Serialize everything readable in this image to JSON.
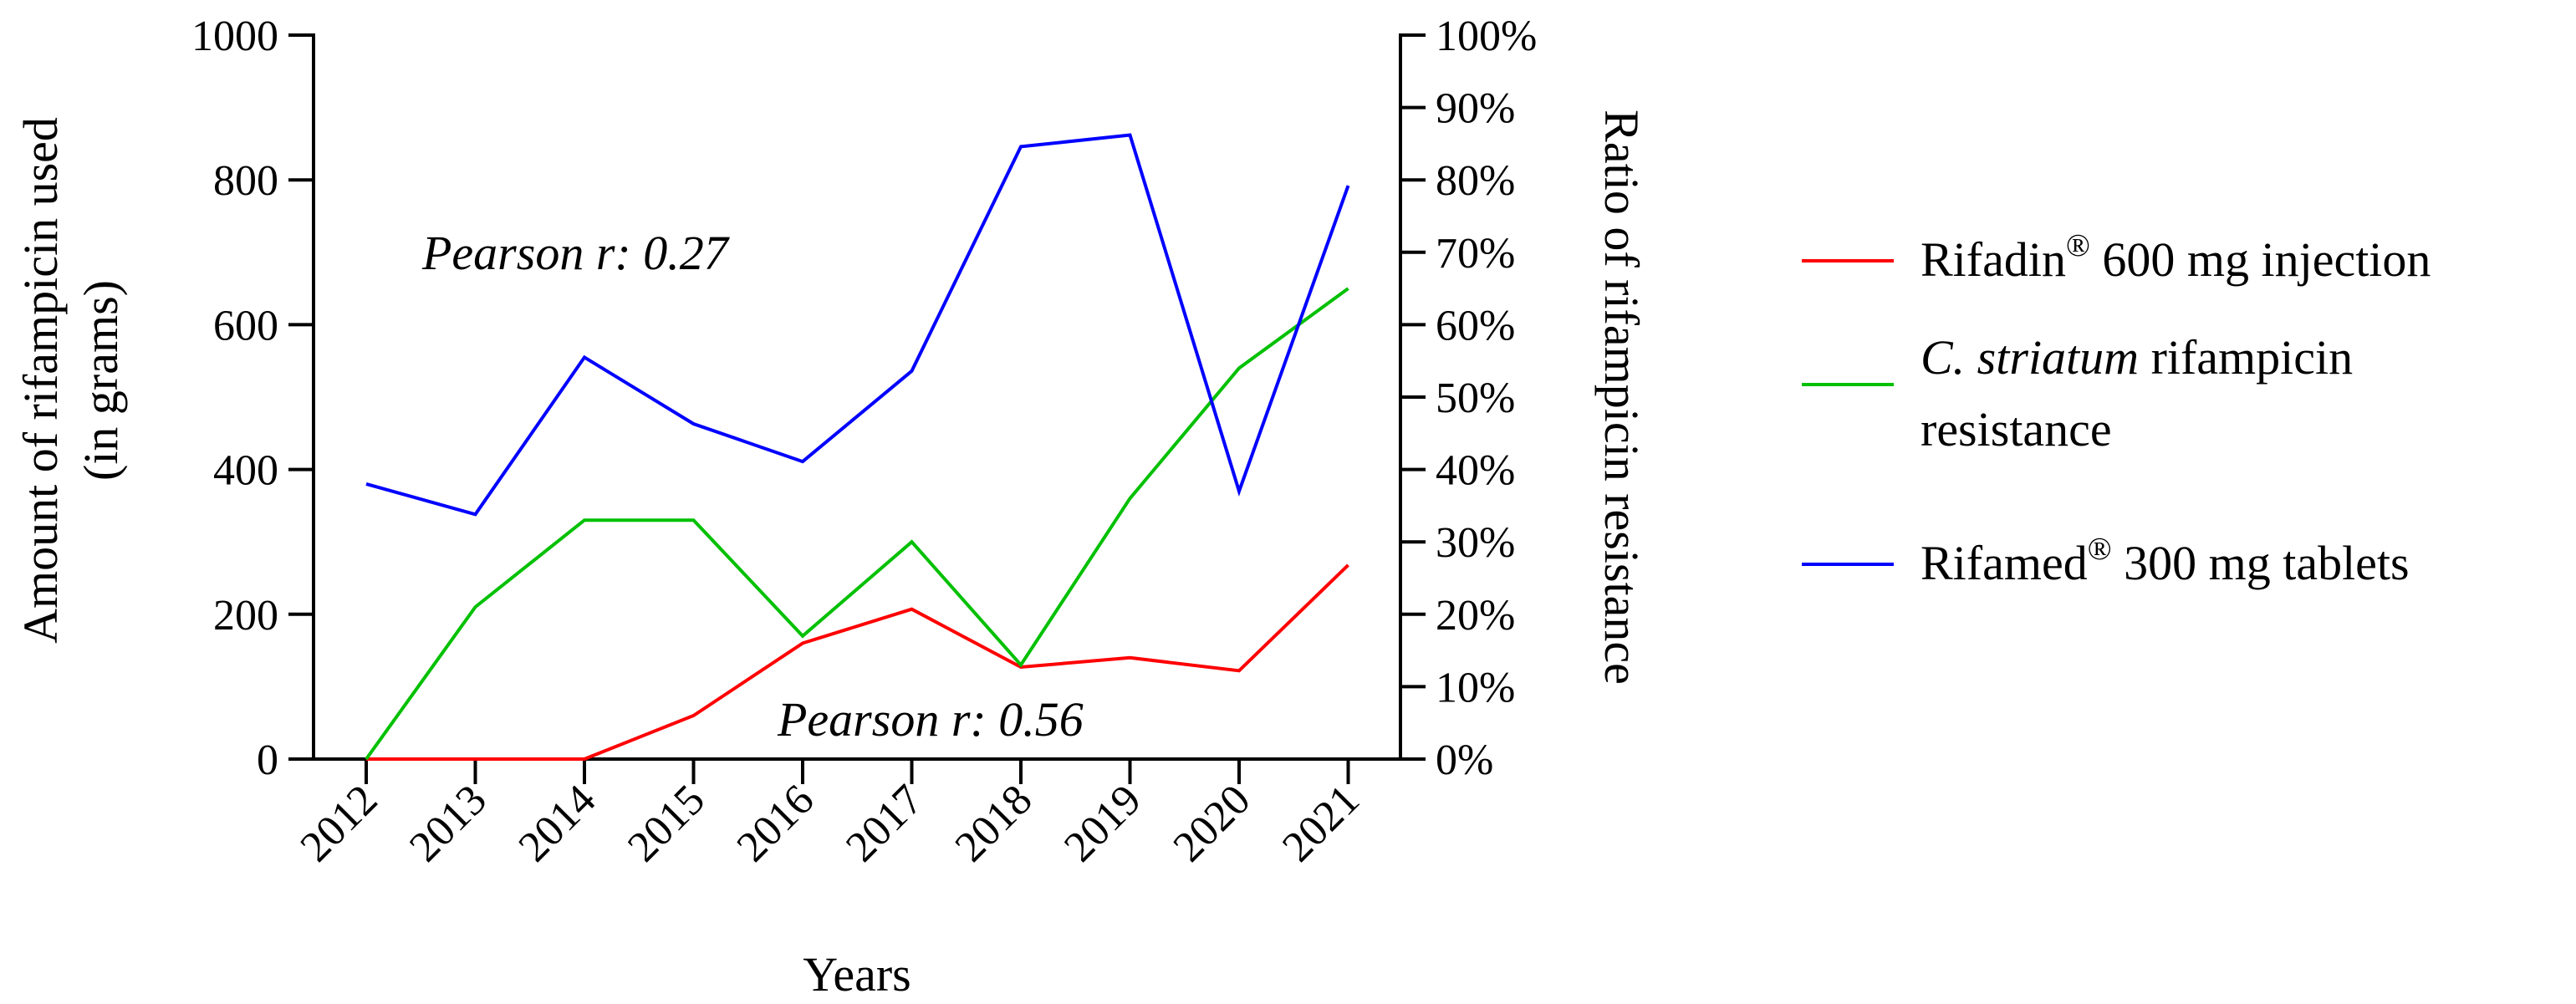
{
  "chart_data": {
    "type": "line",
    "categories": [
      "2012",
      "2013",
      "2014",
      "2015",
      "2016",
      "2017",
      "2018",
      "2019",
      "2020",
      "2021"
    ],
    "xlabel": "Years",
    "ylabel_left": [
      "Amount of rifampicin used",
      "(in grams)"
    ],
    "ylabel_right": "Ratio of rifampicin resistance",
    "ylim_left": [
      0,
      1000
    ],
    "yticks_left": [
      "0",
      "200",
      "400",
      "600",
      "800",
      "1000"
    ],
    "ylim_right": [
      0,
      1
    ],
    "yticks_right": [
      "0%",
      "10%",
      "20%",
      "30%",
      "40%",
      "50%",
      "60%",
      "70%",
      "80%",
      "90%",
      "100%"
    ],
    "series": [
      {
        "name": "Rifadin® 600 mg injection",
        "axis": "left",
        "color": "#ff0000",
        "values": [
          0,
          0,
          0,
          60,
          160,
          207,
          127,
          140,
          122,
          268
        ]
      },
      {
        "name": "C. striatum rifampicin resistance",
        "axis": "right",
        "color": "#00c000",
        "values": [
          0,
          0.21,
          0.33,
          0.33,
          0.17,
          0.3,
          0.13,
          0.36,
          0.54,
          0.65
        ]
      },
      {
        "name": "Rifamed® 300 mg tablets",
        "axis": "left",
        "color": "#0000ff",
        "values": [
          380,
          338,
          555,
          463,
          411,
          536,
          846,
          862,
          370,
          792
        ]
      }
    ],
    "legend": [
      {
        "pre": "Rifadin",
        "sup": "®",
        "post": " 600 mg injection",
        "color": "#ff0000"
      },
      {
        "italic": "C. striatum",
        "post": " rifampicin",
        "line2": "resistance",
        "color": "#00c000"
      },
      {
        "pre": "Rifamed",
        "sup": "®",
        "post": " 300 mg tablets",
        "color": "#0000ff"
      }
    ],
    "annotations": [
      "Pearson r: 0.27",
      "Pearson r: 0.56"
    ]
  }
}
